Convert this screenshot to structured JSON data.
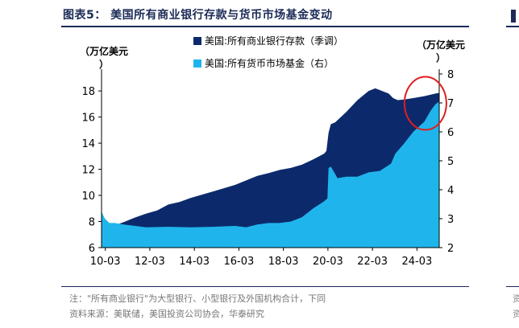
{
  "figure": {
    "title": "图表5：  美国所有商业银行存款与货币市场基金变动",
    "left_unit": "（万亿美元）",
    "right_unit": "（万亿美元）",
    "note": "注：\"所有商业银行\"为大型银行、小型银行及外国机构合计，下同",
    "source": "资料来源：美联储，美国投资公司协会，华泰研究",
    "right_fragments": [
      "资",
      "资"
    ]
  },
  "colors": {
    "deposits": "#0c2a6b",
    "mmf": "#1fb5ec",
    "accent": "#1b2a56",
    "highlight": "#e01e1e"
  },
  "chart_data": {
    "type": "area",
    "legend": [
      "美国:所有商业银行存款（季调）",
      "美国:所有货币市场基金（右）"
    ],
    "x_ticks": [
      "10-03",
      "12-03",
      "14-03",
      "16-03",
      "18-03",
      "20-03",
      "22-03",
      "24-03"
    ],
    "x_range": [
      2010.0,
      2025.17
    ],
    "y_left": {
      "ticks": [
        6,
        8,
        10,
        12,
        14,
        16,
        18
      ],
      "lim": [
        6,
        19.3
      ]
    },
    "y_right": {
      "ticks": [
        2,
        3,
        4,
        5,
        6,
        7,
        8
      ],
      "lim": [
        2,
        8
      ]
    },
    "series": [
      {
        "name": "美国:所有商业银行存款（季调）",
        "axis": "left",
        "points": [
          [
            2010.0,
            7.55
          ],
          [
            2010.5,
            7.65
          ],
          [
            2011.0,
            7.95
          ],
          [
            2011.5,
            8.3
          ],
          [
            2012.0,
            8.6
          ],
          [
            2012.5,
            8.85
          ],
          [
            2013.0,
            9.3
          ],
          [
            2013.5,
            9.5
          ],
          [
            2014.0,
            9.8
          ],
          [
            2014.5,
            10.05
          ],
          [
            2015.0,
            10.3
          ],
          [
            2015.5,
            10.55
          ],
          [
            2016.0,
            10.8
          ],
          [
            2016.5,
            11.15
          ],
          [
            2017.0,
            11.5
          ],
          [
            2017.5,
            11.7
          ],
          [
            2018.0,
            11.95
          ],
          [
            2018.5,
            12.1
          ],
          [
            2019.0,
            12.35
          ],
          [
            2019.5,
            12.75
          ],
          [
            2020.0,
            13.2
          ],
          [
            2020.1,
            13.4
          ],
          [
            2020.2,
            14.8
          ],
          [
            2020.3,
            15.45
          ],
          [
            2020.5,
            15.6
          ],
          [
            2021.0,
            16.4
          ],
          [
            2021.5,
            17.3
          ],
          [
            2022.0,
            18.0
          ],
          [
            2022.3,
            18.2
          ],
          [
            2022.6,
            18.0
          ],
          [
            2022.9,
            17.8
          ],
          [
            2023.1,
            17.45
          ],
          [
            2023.3,
            17.3
          ],
          [
            2023.6,
            17.35
          ],
          [
            2024.0,
            17.45
          ],
          [
            2024.5,
            17.6
          ],
          [
            2025.0,
            17.8
          ],
          [
            2025.17,
            17.85
          ]
        ]
      },
      {
        "name": "美国:所有货币市场基金（右）",
        "axis": "right",
        "points": [
          [
            2010.0,
            3.25
          ],
          [
            2010.15,
            3.0
          ],
          [
            2010.35,
            2.85
          ],
          [
            2010.6,
            2.85
          ],
          [
            2011.0,
            2.8
          ],
          [
            2012.0,
            2.7
          ],
          [
            2013.0,
            2.72
          ],
          [
            2014.0,
            2.7
          ],
          [
            2015.0,
            2.72
          ],
          [
            2016.0,
            2.75
          ],
          [
            2016.5,
            2.7
          ],
          [
            2017.0,
            2.8
          ],
          [
            2017.5,
            2.85
          ],
          [
            2018.0,
            2.85
          ],
          [
            2018.5,
            2.9
          ],
          [
            2019.0,
            3.05
          ],
          [
            2019.5,
            3.35
          ],
          [
            2020.0,
            3.6
          ],
          [
            2020.15,
            3.7
          ],
          [
            2020.2,
            4.75
          ],
          [
            2020.3,
            4.8
          ],
          [
            2020.6,
            4.4
          ],
          [
            2021.0,
            4.45
          ],
          [
            2021.5,
            4.45
          ],
          [
            2022.0,
            4.6
          ],
          [
            2022.5,
            4.65
          ],
          [
            2023.0,
            4.9
          ],
          [
            2023.2,
            5.25
          ],
          [
            2023.6,
            5.6
          ],
          [
            2024.0,
            6.0
          ],
          [
            2024.5,
            6.35
          ],
          [
            2024.8,
            6.75
          ],
          [
            2025.0,
            6.95
          ],
          [
            2025.17,
            7.05
          ]
        ]
      }
    ]
  }
}
